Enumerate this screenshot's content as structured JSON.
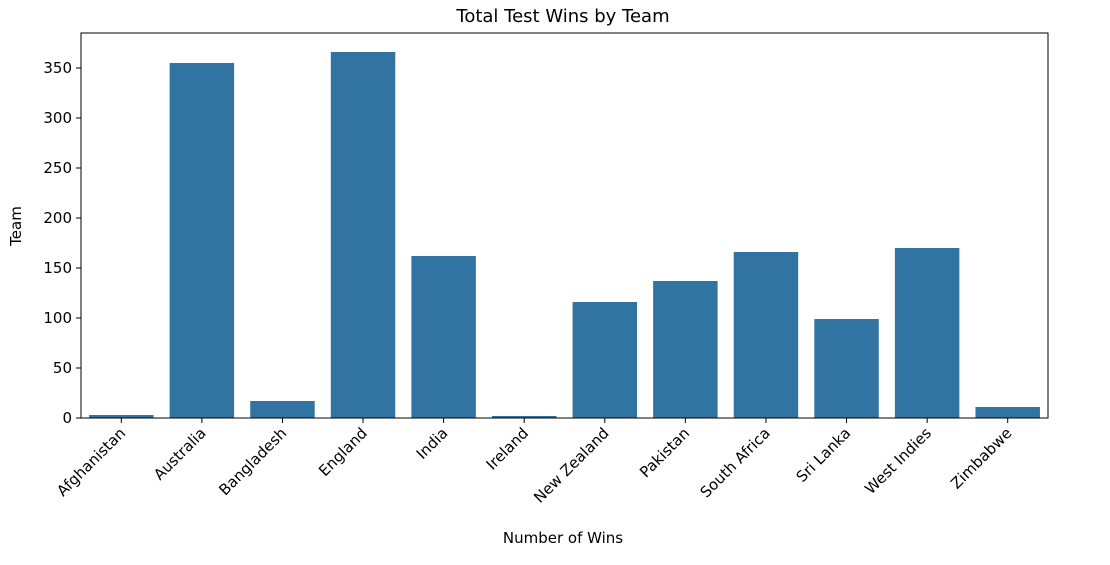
{
  "chart_data": {
    "type": "bar",
    "title": "Total Test Wins by Team",
    "xlabel": "Number of Wins",
    "ylabel": "Team",
    "categories": [
      "Afghanistan",
      "Australia",
      "Bangladesh",
      "England",
      "India",
      "Ireland",
      "New Zealand",
      "Pakistan",
      "South Africa",
      "Sri Lanka",
      "West Indies",
      "Zimbabwe"
    ],
    "values": [
      3,
      355,
      17,
      366,
      162,
      2,
      116,
      137,
      166,
      99,
      170,
      11
    ],
    "ylim": [
      0,
      385
    ],
    "yticks": [
      0,
      50,
      100,
      150,
      200,
      250,
      300,
      350
    ],
    "bar_color": "#3274a1",
    "grid": false,
    "legend": "none"
  }
}
